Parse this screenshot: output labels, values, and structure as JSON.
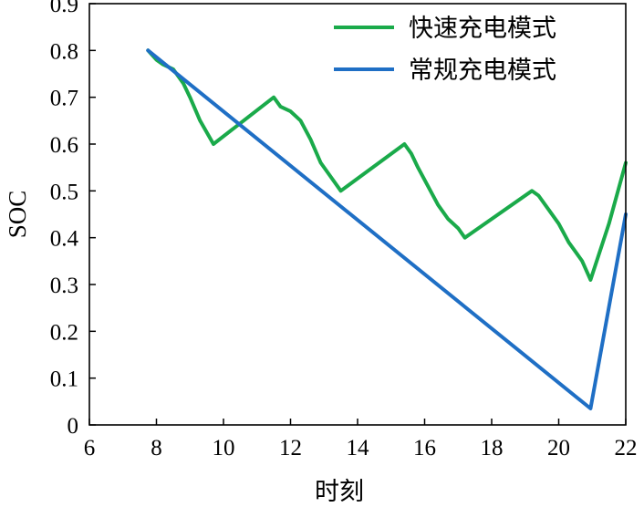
{
  "chart_data": {
    "type": "line",
    "title": "",
    "xlabel": "时刻",
    "ylabel": "SOC",
    "xlim": [
      6,
      22
    ],
    "ylim": [
      0,
      0.9
    ],
    "xticks": [
      "6",
      "8",
      "10",
      "12",
      "14",
      "16",
      "18",
      "20",
      "22"
    ],
    "yticks": [
      "0",
      "0.1",
      "0.2",
      "0.3",
      "0.4",
      "0.5",
      "0.6",
      "0.7",
      "0.8",
      "0.9"
    ],
    "grid": false,
    "legend_position": "top-right",
    "series": [
      {
        "name": "快速充电模式",
        "color": "#1aaa4a",
        "x": [
          7.75,
          8.0,
          8.2,
          8.5,
          8.8,
          9.0,
          9.3,
          9.7,
          11.5,
          11.7,
          12.0,
          12.3,
          12.6,
          12.9,
          13.2,
          13.5,
          15.4,
          15.6,
          15.8,
          16.1,
          16.4,
          16.7,
          17.0,
          17.2,
          19.2,
          19.4,
          19.7,
          20.0,
          20.3,
          20.5,
          20.7,
          20.95,
          21.5,
          22.0
        ],
        "y": [
          0.8,
          0.78,
          0.77,
          0.76,
          0.73,
          0.7,
          0.65,
          0.6,
          0.7,
          0.68,
          0.67,
          0.65,
          0.61,
          0.56,
          0.53,
          0.5,
          0.6,
          0.58,
          0.55,
          0.51,
          0.47,
          0.44,
          0.42,
          0.4,
          0.5,
          0.49,
          0.46,
          0.43,
          0.39,
          0.37,
          0.35,
          0.31,
          0.43,
          0.56
        ]
      },
      {
        "name": "常规充电模式",
        "color": "#1f6fc5",
        "x": [
          7.75,
          20.95,
          22.0
        ],
        "y": [
          0.8,
          0.035,
          0.45
        ]
      }
    ]
  }
}
